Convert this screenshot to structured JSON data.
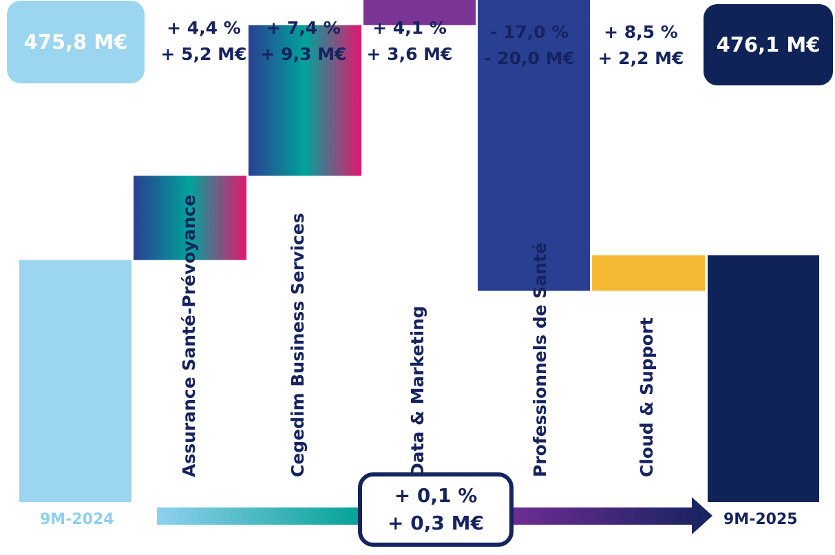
{
  "start_value_label": "475,8 M€",
  "end_value_label": "476,1 M€",
  "start_period": "9M-2024",
  "end_period": "9M-2025",
  "changes": [
    {
      "pct": "+ 4,4 %",
      "abs": "+ 5,2 M€"
    },
    {
      "pct": "+ 7,4 %",
      "abs": "+ 9,3 M€"
    },
    {
      "pct": "+ 4,1 %",
      "abs": "+ 3,6 M€"
    },
    {
      "pct": "- 17,0 %",
      "abs": "- 20,0 M€"
    },
    {
      "pct": "+ 8,5 %",
      "abs": "+ 2,2 M€"
    }
  ],
  "total_change": {
    "pct": "+ 0,1 %",
    "abs": "+ 0,3 M€"
  },
  "colors": {
    "start": "#9bd5ef",
    "end": "#0f2359",
    "text": "#15235f",
    "start_label": "#8fd0ee",
    "data_marketing": "#7b3595",
    "professionnels": "#293f92",
    "cloud": "#f5b935",
    "gradient_stops": [
      "#293f92",
      "#00a39a",
      "#e5166f"
    ],
    "arrow_stops": [
      "#8fd0ee",
      "#0aa49a",
      "#6a2c91",
      "#15235f"
    ]
  },
  "chart_data": {
    "type": "waterfall",
    "title": "",
    "xlabel": "",
    "ylabel": "",
    "unit": "M€",
    "start": {
      "label": "9M-2024",
      "value": 475.8
    },
    "end": {
      "label": "9M-2025",
      "value": 476.1
    },
    "steps": [
      {
        "category": "Assurance Santé-Prévoyance",
        "delta": 5.2,
        "pct": 4.4
      },
      {
        "category": "Cegedim Business Services",
        "delta": 9.3,
        "pct": 7.4
      },
      {
        "category": "Data & Marketing",
        "delta": 3.6,
        "pct": 4.1
      },
      {
        "category": "Professionnels de Santé",
        "delta": -20.0,
        "pct": -17.0
      },
      {
        "category": "Cloud & Support",
        "delta": 2.2,
        "pct": 8.5
      }
    ],
    "total_change": {
      "delta": 0.3,
      "pct": 0.1
    }
  }
}
